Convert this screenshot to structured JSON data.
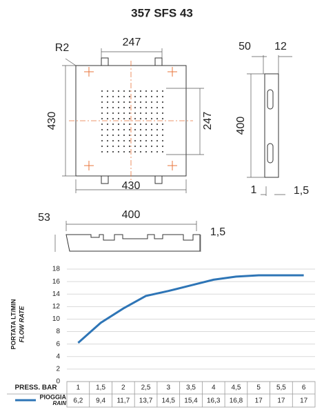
{
  "title": "357 SFS 43",
  "drawings": {
    "top_view": {
      "labels": [
        "R2",
        "247",
        "430",
        "430",
        "247"
      ]
    },
    "side_view": {
      "labels": [
        "50",
        "12",
        "400",
        "1",
        "1,5"
      ]
    },
    "front_view": {
      "labels": [
        "53",
        "400",
        "1,5"
      ]
    }
  },
  "chart_data": {
    "type": "line",
    "y_label": "PORTATA LT/MIN",
    "y_label_alt": "FLOW RATE",
    "x_label": "PRESS. BAR",
    "categories": [
      "1",
      "1,5",
      "2",
      "2,5",
      "3",
      "3,5",
      "4",
      "4,5",
      "5",
      "5,5",
      "6"
    ],
    "series": [
      {
        "name": "PIOGGIA",
        "name_alt": "RAIN",
        "color": "#2e75b6",
        "values": [
          6.2,
          9.4,
          11.7,
          13.7,
          14.5,
          15.4,
          16.3,
          16.8,
          17,
          17,
          17
        ],
        "value_labels": [
          "6,2",
          "9,4",
          "11,7",
          "13,7",
          "14,5",
          "15,4",
          "16,3",
          "16,8",
          "17",
          "17",
          "17"
        ]
      }
    ],
    "ylim": [
      0,
      18
    ],
    "yticks": [
      0,
      2,
      4,
      6,
      8,
      10,
      12,
      14,
      16,
      18
    ],
    "grid": true
  }
}
